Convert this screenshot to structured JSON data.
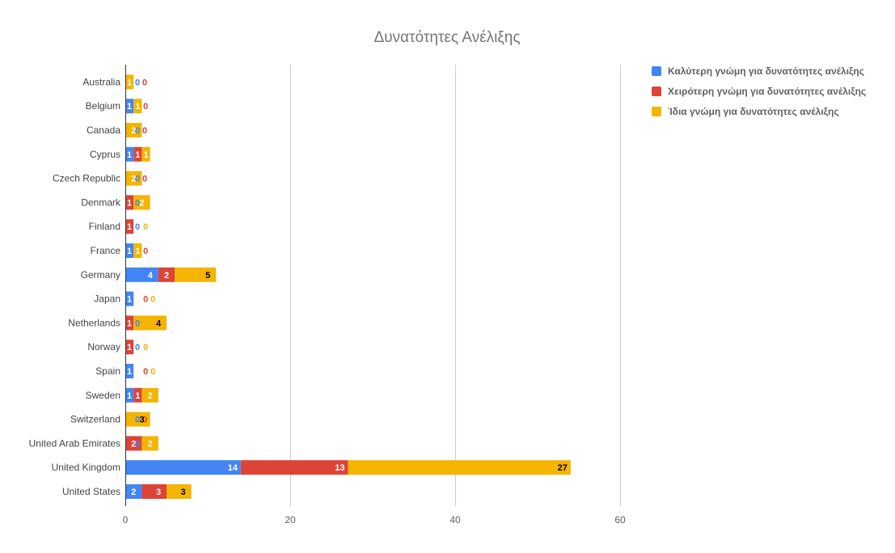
{
  "chart_data": {
    "type": "bar",
    "orientation": "horizontal",
    "stacked": true,
    "title": "Δυνατότητες Ανέλιξης",
    "xlabel": "",
    "ylabel": "",
    "xlim": [
      0,
      80
    ],
    "xticks": [
      0,
      20,
      40,
      60
    ],
    "grid": true,
    "legend_position": "right",
    "categories": [
      "Australia",
      "Belgium",
      "Canada",
      "Cyprus",
      "Czech Republic",
      "Denmark",
      "Finland",
      "France",
      "Germany",
      "Japan",
      "Netherlands",
      "Norway",
      "Spain",
      "Sweden",
      "Switzerland",
      "United Arab Emirates",
      "United Kingdom",
      "United States"
    ],
    "series": [
      {
        "name": "Καλύτερη γνώμη για δυνατότητες ανέλιξης",
        "color": "#4285f4",
        "values": [
          0,
          1,
          0,
          1,
          0,
          0,
          0,
          1,
          4,
          1,
          0,
          0,
          1,
          1,
          0,
          0,
          14,
          2
        ]
      },
      {
        "name": "Χειρότερη γνώμη για δυνατότητες ανέλιξης",
        "color": "#db4437",
        "values": [
          0,
          0,
          0,
          1,
          0,
          1,
          1,
          0,
          2,
          0,
          1,
          1,
          0,
          1,
          0,
          2,
          13,
          3
        ]
      },
      {
        "name": "Ίδια γνώμη για δυνατότητες ανέλιξης",
        "color": "#f4b400",
        "values": [
          1,
          1,
          2,
          1,
          2,
          2,
          0,
          1,
          5,
          0,
          4,
          0,
          0,
          2,
          3,
          2,
          27,
          3
        ]
      }
    ]
  }
}
